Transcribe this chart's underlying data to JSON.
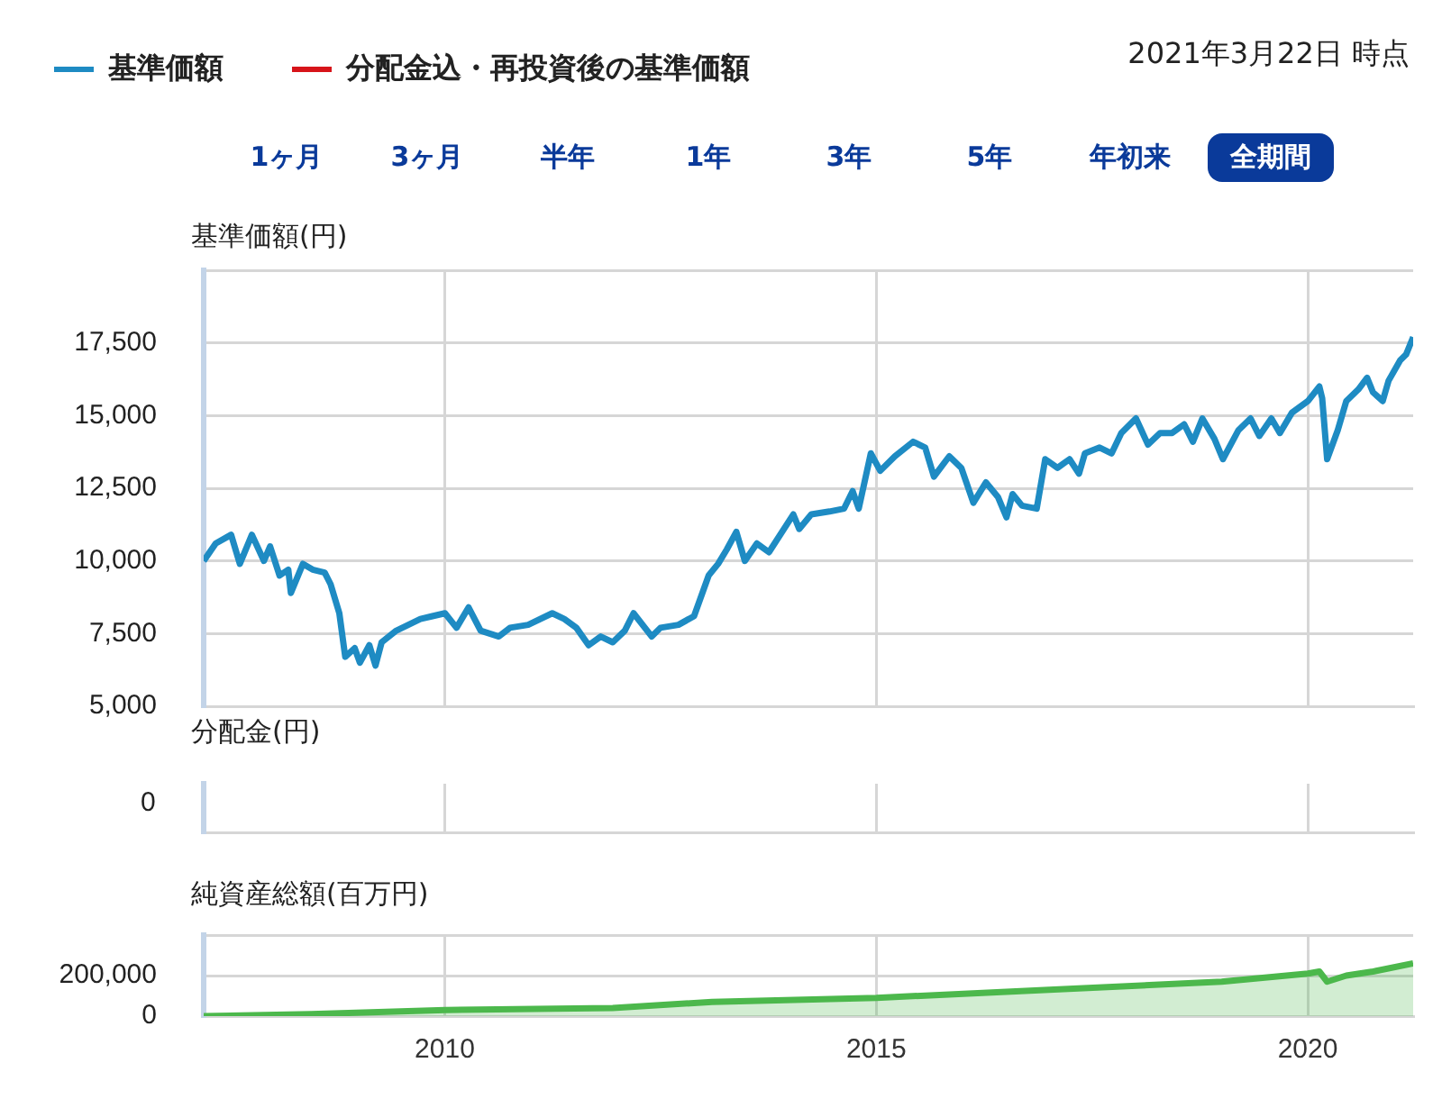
{
  "chart_data": [
    {
      "type": "line",
      "subtitle": "2021年3月22日 時点",
      "ylabel": "基準価額(円)",
      "legend": "top left",
      "grid": true,
      "tick_labels": "y",
      "annotations": [
        "1ヶ月",
        "3ヶ月",
        "半年",
        "1年",
        "3年",
        "5年",
        "年初来",
        "全期間"
      ],
      "xlim": [
        "2007-03-18",
        "2021-03-22"
      ],
      "xticks": [
        "2010",
        "2015",
        "2020"
      ],
      "ylim": [
        5000,
        20000
      ],
      "yticks": [
        {
          "value": 5000,
          "label": "5,000"
        },
        {
          "value": 7500,
          "label": "7,500"
        },
        {
          "value": 10000,
          "label": "10,000"
        },
        {
          "value": 12500,
          "label": "12,500"
        },
        {
          "value": 15000,
          "label": "15,000"
        },
        {
          "value": 17500,
          "label": "17,500"
        },
        {
          "value": 20000,
          "label": null
        }
      ],
      "x": [
        "2007-03-18",
        "2007-05-08",
        "2007-07-12",
        "2007-08-18",
        "2007-10-08",
        "2007-11-28",
        "2007-12-24",
        "2008-02-02",
        "2008-03-10",
        "2008-03-21",
        "2008-05-11",
        "2008-06-21",
        "2008-08-11",
        "2008-09-05",
        "2008-10-12",
        "2008-11-06",
        "2008-12-16",
        "2009-01-07",
        "2009-02-16",
        "2009-03-14",
        "2009-04-09",
        "2009-06-10",
        "2009-07-31",
        "2009-09-20",
        "2009-11-10",
        "2010-01-02",
        "2010-02-20",
        "2010-04-12",
        "2010-06-02",
        "2010-08-18",
        "2010-10-04",
        "2010-12-20",
        "2011-04-01",
        "2011-05-22",
        "2011-07-12",
        "2011-09-02",
        "2011-10-23",
        "2011-12-13",
        "2012-02-02",
        "2012-03-10",
        "2012-05-26",
        "2012-07-02",
        "2012-09-16",
        "2012-11-21",
        "2013-01-22",
        "2013-03-03",
        "2013-04-09",
        "2013-05-19",
        "2013-06-24",
        "2013-08-14",
        "2013-10-04",
        "2014-01-15",
        "2014-02-09",
        "2014-04-01",
        "2014-06-17",
        "2014-08-18",
        "2014-09-23",
        "2014-10-19",
        "2014-12-09",
        "2015-01-18",
        "2015-03-21",
        "2015-06-06",
        "2015-07-27",
        "2015-09-02",
        "2015-11-06",
        "2015-12-27",
        "2016-02-16",
        "2016-04-09",
        "2016-05-30",
        "2016-07-05",
        "2016-07-31",
        "2016-09-09",
        "2016-11-10",
        "2016-12-16",
        "2017-02-06",
        "2017-03-29",
        "2017-05-08",
        "2017-06-02",
        "2017-08-03",
        "2017-09-23",
        "2017-11-03",
        "2018-01-04",
        "2018-02-24",
        "2018-04-16",
        "2018-06-06",
        "2018-07-27",
        "2018-09-02",
        "2018-10-12",
        "2018-12-02",
        "2019-01-07",
        "2019-03-14",
        "2019-05-04",
        "2019-06-10",
        "2019-07-31",
        "2019-09-05",
        "2019-10-26",
        "2020-01-02",
        "2020-02-19",
        "2020-03-02",
        "2020-03-23",
        "2020-05-07",
        "2020-06-12",
        "2020-08-02",
        "2020-09-08",
        "2020-10-03",
        "2020-11-13",
        "2020-12-08",
        "2021-01-26",
        "2021-02-20",
        "2021-03-22"
      ],
      "series": [
        {
          "name": "基準価額",
          "color": "#1e8bc3",
          "values": [
            10000,
            10600,
            10900,
            9900,
            10900,
            10000,
            10500,
            9500,
            9700,
            8900,
            9900,
            9700,
            9600,
            9200,
            8200,
            6700,
            7000,
            6500,
            7100,
            6400,
            7200,
            7600,
            7800,
            8000,
            8100,
            8200,
            7700,
            8400,
            7600,
            7400,
            7700,
            7800,
            8200,
            8000,
            7700,
            7100,
            7400,
            7200,
            7600,
            8200,
            7400,
            7700,
            7800,
            8100,
            9500,
            9900,
            10400,
            11000,
            10000,
            10600,
            10300,
            11600,
            11100,
            11600,
            11700,
            11800,
            12400,
            11800,
            13700,
            13100,
            13600,
            14100,
            13900,
            12900,
            13600,
            13200,
            12000,
            12700,
            12200,
            11500,
            12300,
            11900,
            11800,
            13500,
            13200,
            13500,
            13000,
            13700,
            13900,
            13700,
            14400,
            14900,
            14000,
            14400,
            14400,
            14700,
            14100,
            14900,
            14200,
            13500,
            14500,
            14900,
            14300,
            14900,
            14400,
            15100,
            15500,
            16000,
            15600,
            13500,
            14500,
            15500,
            15900,
            16300,
            15800,
            15500,
            16200,
            16900,
            17100,
            17700
          ]
        },
        {
          "name": "分配金込・再投資後の基準価額",
          "color": "#d7141a",
          "values": [
            null,
            null,
            null,
            null,
            null,
            null,
            null,
            null,
            null,
            null,
            null,
            null,
            null,
            null,
            null,
            null,
            null,
            null,
            null,
            null,
            null,
            null,
            null,
            null,
            null,
            null,
            null,
            null,
            null,
            null,
            null,
            null,
            null,
            null,
            null,
            null,
            null,
            null,
            null,
            null,
            null,
            null,
            null,
            null,
            null,
            null,
            null,
            null,
            null,
            null,
            null,
            null,
            null,
            null,
            null,
            null,
            null,
            null,
            null,
            null,
            null,
            null,
            null,
            null,
            null,
            null,
            null,
            null,
            null,
            null,
            null,
            null,
            null,
            null,
            null,
            null,
            null,
            null,
            null,
            null,
            null,
            null,
            null,
            null,
            null,
            null,
            null,
            null,
            null,
            null,
            null,
            null,
            null,
            null,
            null,
            null,
            null,
            null,
            null,
            null,
            null,
            null,
            null,
            null,
            null,
            null,
            null,
            null,
            null,
            null
          ]
        }
      ]
    },
    {
      "type": "other",
      "ylabel": "分配金(円)",
      "annotations": [
        "0"
      ]
    },
    {
      "type": "area",
      "ylabel": "純資産総額(百万円)",
      "grid": true,
      "xlim": [
        "2007-03-18",
        "2021-03-22"
      ],
      "xticks": [
        "2010",
        "2015",
        "2020"
      ],
      "ylim": [
        0,
        400000
      ],
      "yticks": [
        0,
        {
          "value": 200000,
          "label": "200,000"
        },
        {
          "value": 400000,
          "label": null
        }
      ],
      "x": [
        "2007-03-18",
        "2008-06-15",
        "2010-01-02",
        "2011-12-13",
        "2013-02-05",
        "2015-01-02",
        "2017-01-02",
        "2019-01-02",
        "2020-01-02",
        "2020-02-19",
        "2020-03-23",
        "2020-06-12",
        "2020-10-03",
        "2021-03-22"
      ],
      "series": [
        {
          "color": "#4cb84c",
          "values": [
            0,
            10000,
            30000,
            40000,
            70000,
            90000,
            130000,
            170000,
            210000,
            220000,
            170000,
            200000,
            220000,
            260000
          ]
        }
      ]
    }
  ]
}
